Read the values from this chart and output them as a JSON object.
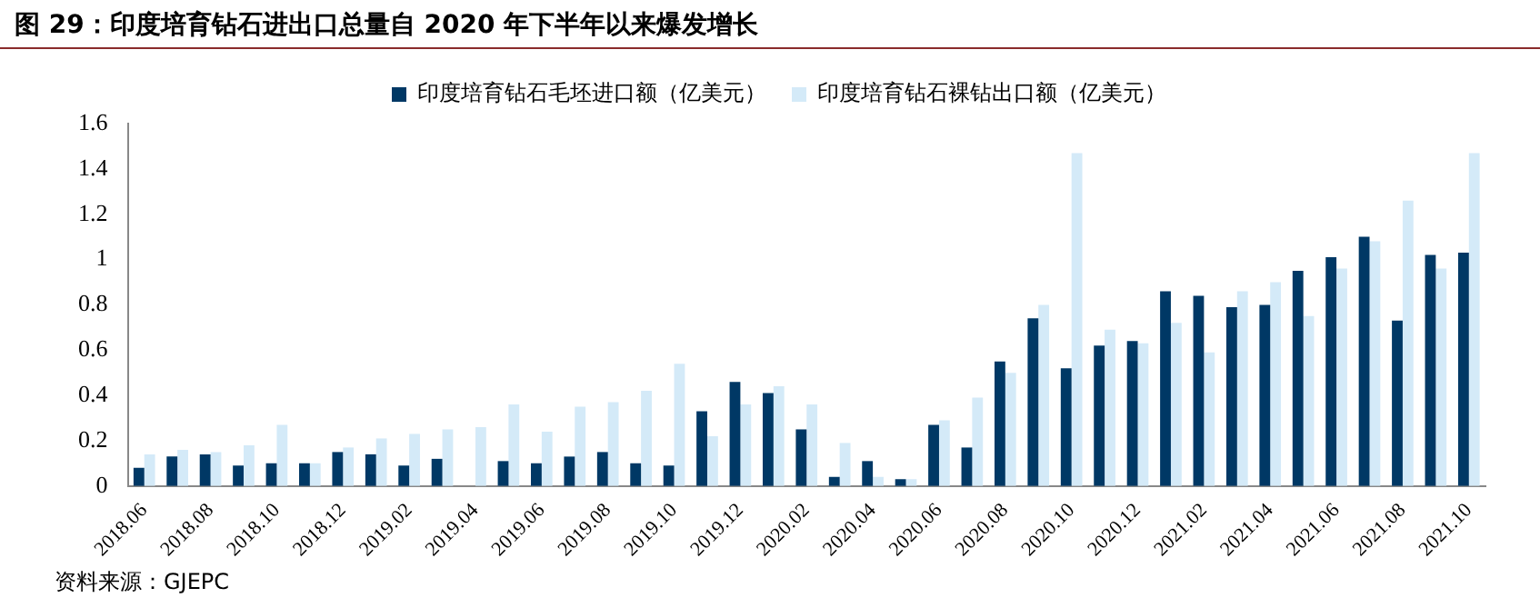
{
  "chart_data": {
    "type": "bar",
    "title": "图 29：印度培育钻石进出口总量自 2020 年下半年以来爆发增长",
    "categories": [
      "2018.06",
      null,
      "2018.08",
      null,
      "2018.10",
      null,
      "2018.12",
      null,
      "2019.02",
      null,
      "2019.04",
      null,
      "2019.06",
      null,
      "2019.08",
      null,
      "2019.10",
      null,
      "2019.12",
      null,
      "2020.02",
      null,
      "2020.04",
      null,
      "2020.06",
      null,
      "2020.08",
      null,
      "2020.10",
      null,
      "2020.12",
      null,
      "2021.02",
      null,
      "2021.04",
      null,
      "2021.06",
      null,
      "2021.08",
      null,
      "2021.10"
    ],
    "series": [
      {
        "name": "印度培育钻石毛坯进口额（亿美元）",
        "color": "#003865",
        "values": [
          0.08,
          0.13,
          0.14,
          0.09,
          0.1,
          0.1,
          0.15,
          0.14,
          0.09,
          0.12,
          null,
          0.11,
          0.1,
          0.13,
          0.15,
          0.1,
          0.09,
          0.33,
          0.46,
          0.41,
          0.25,
          0.04,
          0.11,
          0.03,
          0.27,
          0.17,
          0.55,
          0.74,
          0.52,
          0.62,
          0.64,
          0.86,
          0.84,
          0.79,
          0.8,
          0.95,
          1.01,
          1.1,
          0.73,
          1.02,
          1.03
        ]
      },
      {
        "name": "印度培育钻石裸钻出口额（亿美元）",
        "color": "#d4eaf8",
        "values": [
          0.14,
          0.16,
          0.15,
          0.18,
          0.27,
          0.1,
          0.17,
          0.21,
          0.23,
          0.25,
          0.26,
          0.36,
          0.24,
          0.35,
          0.37,
          0.42,
          0.54,
          0.22,
          0.36,
          0.44,
          0.36,
          0.19,
          0.04,
          0.03,
          0.29,
          0.39,
          0.5,
          0.8,
          1.47,
          0.69,
          0.63,
          0.72,
          0.59,
          0.86,
          0.9,
          0.75,
          0.96,
          1.08,
          1.26,
          0.96,
          1.47
        ]
      }
    ],
    "ylim": [
      0,
      1.6
    ],
    "yticks": [
      0,
      0.2,
      0.4,
      0.6,
      0.8,
      1,
      1.2,
      1.4,
      1.6
    ],
    "grid": false,
    "legend": "top",
    "annotations": [
      "资料来源：GJEPC"
    ]
  }
}
